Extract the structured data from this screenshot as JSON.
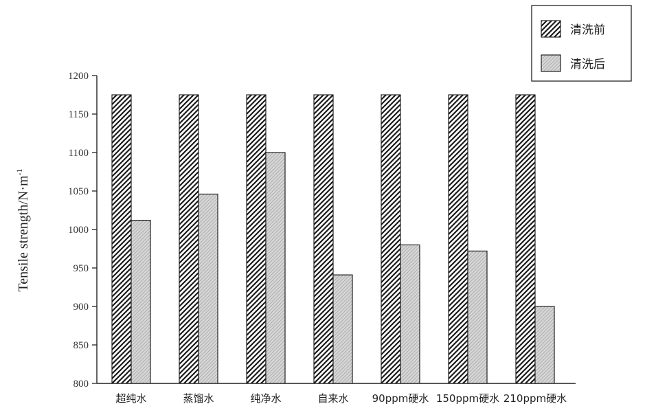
{
  "chart_data": {
    "type": "bar",
    "categories": [
      "超纯水",
      "蒸馏水",
      "纯净水",
      "自来水",
      "90ppm硬水",
      "150ppm硬水",
      "210ppm硬水"
    ],
    "series": [
      {
        "name": "清洗前",
        "values": [
          1175,
          1175,
          1175,
          1175,
          1175,
          1175,
          1175
        ],
        "pattern": "diagonal-hatch"
      },
      {
        "name": "清洗后",
        "values": [
          1012,
          1046,
          1100,
          941,
          980,
          972,
          900
        ],
        "pattern": "light-gray-hatch"
      }
    ],
    "ylabel": "Tensile strength/N·m",
    "ylabel_superscript": "-1",
    "ylim": [
      800,
      1200
    ],
    "yticks": [
      "800",
      "850",
      "900",
      "950",
      "1000",
      "1050",
      "1100",
      "1150",
      "1200"
    ],
    "legend_position": "top-right",
    "grid": false
  }
}
